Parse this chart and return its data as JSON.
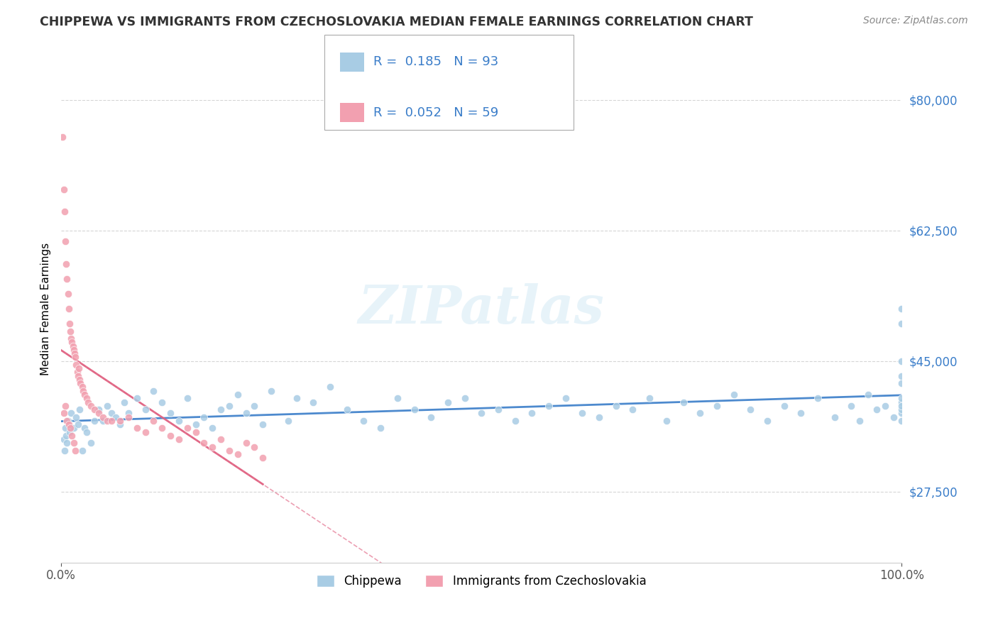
{
  "title": "CHIPPEWA VS IMMIGRANTS FROM CZECHOSLOVAKIA MEDIAN FEMALE EARNINGS CORRELATION CHART",
  "source": "Source: ZipAtlas.com",
  "ylabel": "Median Female Earnings",
  "xlim": [
    0.0,
    100.0
  ],
  "ylim": [
    18000,
    86000
  ],
  "yticks": [
    27500,
    45000,
    62500,
    80000
  ],
  "ytick_labels": [
    "$27,500",
    "$45,000",
    "$62,500",
    "$80,000"
  ],
  "xticks": [
    0.0,
    100.0
  ],
  "xtick_labels": [
    "0.0%",
    "100.0%"
  ],
  "legend_r1": "R =  0.185",
  "legend_n1": "N = 93",
  "legend_r2": "R =  0.052",
  "legend_n2": "N = 59",
  "color_blue": "#a8cce4",
  "color_pink": "#f2a0b0",
  "color_blue_trend": "#3a7dc9",
  "color_pink_trend": "#e06080",
  "color_blue_text": "#3a7dc9",
  "watermark": "ZIPatlas",
  "background_color": "#ffffff",
  "chippewa_x": [
    0.3,
    0.4,
    0.5,
    0.6,
    0.7,
    0.8,
    1.0,
    1.2,
    1.5,
    1.8,
    2.0,
    2.2,
    2.5,
    2.8,
    3.0,
    3.5,
    4.0,
    4.5,
    5.0,
    5.5,
    6.0,
    6.5,
    7.0,
    7.5,
    8.0,
    9.0,
    10.0,
    11.0,
    12.0,
    13.0,
    14.0,
    15.0,
    16.0,
    17.0,
    18.0,
    19.0,
    20.0,
    21.0,
    22.0,
    23.0,
    24.0,
    25.0,
    27.0,
    28.0,
    30.0,
    32.0,
    34.0,
    36.0,
    38.0,
    40.0,
    42.0,
    44.0,
    46.0,
    48.0,
    50.0,
    52.0,
    54.0,
    56.0,
    58.0,
    60.0,
    62.0,
    64.0,
    66.0,
    68.0,
    70.0,
    72.0,
    74.0,
    76.0,
    78.0,
    80.0,
    82.0,
    84.0,
    86.0,
    88.0,
    90.0,
    92.0,
    94.0,
    95.0,
    96.0,
    97.0,
    98.0,
    99.0,
    100.0,
    100.0,
    100.0,
    100.0,
    100.0,
    100.0,
    100.0,
    100.0,
    100.0,
    100.0,
    100.0
  ],
  "chippewa_y": [
    34500,
    33000,
    36000,
    35000,
    34000,
    37000,
    35500,
    38000,
    36000,
    37500,
    36500,
    38500,
    33000,
    36000,
    35500,
    34000,
    37000,
    38500,
    37000,
    39000,
    38000,
    37500,
    36500,
    39500,
    38000,
    40000,
    38500,
    41000,
    39500,
    38000,
    37000,
    40000,
    36500,
    37500,
    36000,
    38500,
    39000,
    40500,
    38000,
    39000,
    36500,
    41000,
    37000,
    40000,
    39500,
    41500,
    38500,
    37000,
    36000,
    40000,
    38500,
    37500,
    39500,
    40000,
    38000,
    38500,
    37000,
    38000,
    39000,
    40000,
    38000,
    37500,
    39000,
    38500,
    40000,
    37000,
    39500,
    38000,
    39000,
    40500,
    38500,
    37000,
    39000,
    38000,
    40000,
    37500,
    39000,
    37000,
    40500,
    38500,
    39000,
    37500,
    50000,
    52000,
    43000,
    42000,
    45000,
    38000,
    37000,
    38500,
    39500,
    40000,
    39000
  ],
  "immig_x": [
    0.2,
    0.3,
    0.4,
    0.5,
    0.6,
    0.7,
    0.8,
    0.9,
    1.0,
    1.1,
    1.2,
    1.3,
    1.4,
    1.5,
    1.6,
    1.7,
    1.8,
    1.9,
    2.0,
    2.1,
    2.2,
    2.3,
    2.5,
    2.6,
    2.8,
    3.0,
    3.2,
    3.5,
    4.0,
    4.5,
    5.0,
    5.5,
    6.0,
    7.0,
    8.0,
    9.0,
    10.0,
    11.0,
    12.0,
    13.0,
    14.0,
    15.0,
    16.0,
    17.0,
    18.0,
    19.0,
    20.0,
    21.0,
    22.0,
    23.0,
    24.0,
    0.3,
    0.5,
    0.7,
    0.9,
    1.1,
    1.3,
    1.5,
    1.7
  ],
  "immig_y": [
    75000,
    68000,
    65000,
    61000,
    58000,
    56000,
    54000,
    52000,
    50000,
    49000,
    48000,
    47500,
    47000,
    46500,
    46000,
    45500,
    44500,
    43500,
    43000,
    44000,
    42500,
    42000,
    41500,
    41000,
    40500,
    40000,
    39500,
    39000,
    38500,
    38000,
    37500,
    37000,
    37000,
    37000,
    37500,
    36000,
    35500,
    37000,
    36000,
    35000,
    34500,
    36000,
    35500,
    34000,
    33500,
    34500,
    33000,
    32500,
    34000,
    33500,
    32000,
    38000,
    39000,
    37000,
    36500,
    36000,
    35000,
    34000,
    33000
  ]
}
